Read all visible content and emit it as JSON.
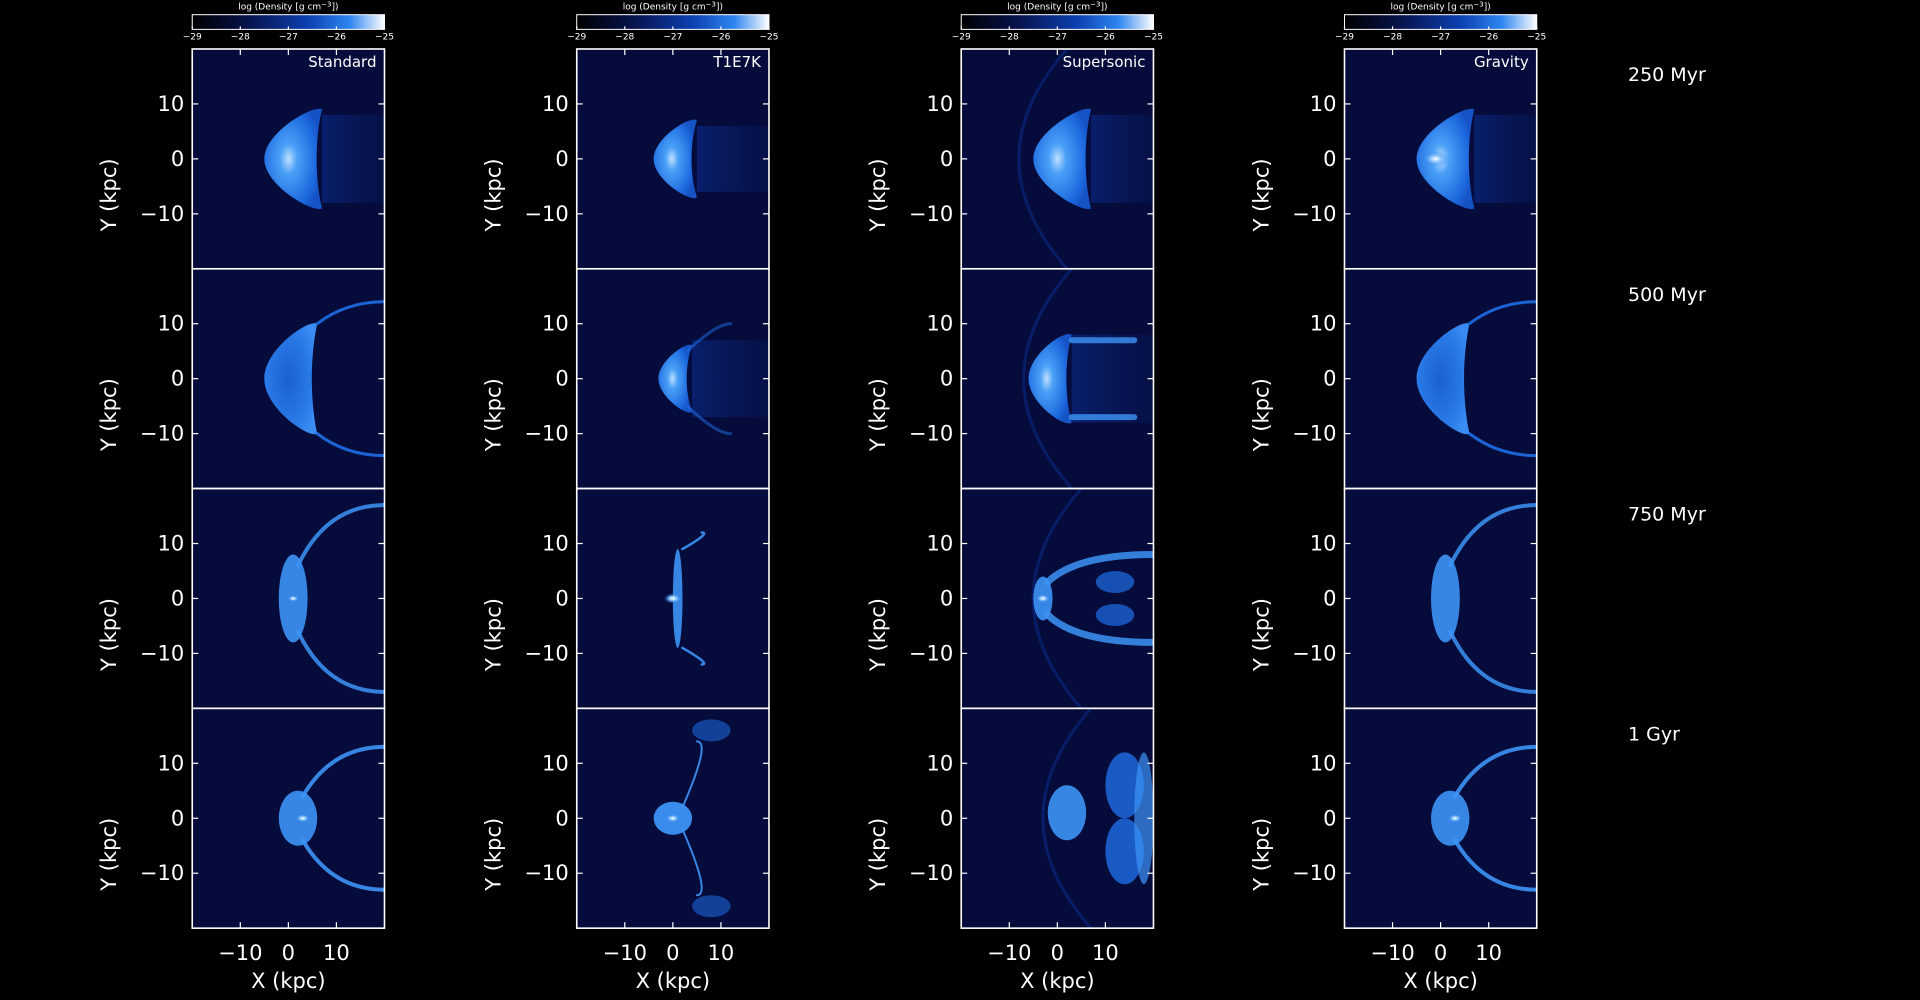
{
  "colorbar": {
    "label": "log (Density [g cm",
    "label_exp": "−3",
    "label_tail": "])",
    "ticks": [
      "−29",
      "−28",
      "−27",
      "−26",
      "−25"
    ],
    "range": [
      -29,
      -25
    ],
    "colors": [
      "#000000",
      "#08144f",
      "#0b3fb0",
      "#2f86f0",
      "#ffffff"
    ]
  },
  "times": [
    "250 Myr",
    "500 Myr",
    "750 Myr",
    "1 Gyr"
  ],
  "chart_data": {
    "type": "heatmap",
    "columns": [
      "Standard",
      "T1E7K",
      "Supersonic",
      "Gravity"
    ],
    "rows": [
      "250 Myr",
      "500 Myr",
      "750 Myr",
      "1 Gyr"
    ],
    "xlabel": "X (kpc)",
    "ylabel": "Y (kpc)",
    "xlim": [
      -20,
      20
    ],
    "ylim": [
      -20,
      20
    ],
    "xticks": [
      -10,
      0,
      10
    ],
    "yticks": [
      -10,
      0,
      10
    ],
    "xtick_labels": [
      "−10",
      "0",
      "10"
    ],
    "ytick_labels": [
      "−10",
      "0",
      "10"
    ],
    "value_scale": "log density [g cm^-3]",
    "value_range": [
      -29,
      -25
    ]
  },
  "colors": {
    "background": "#000000",
    "panel_bg": "#050c3c",
    "ambient": "#071656",
    "mid_blue": "#1f6ee6",
    "bright_blue": "#3d94f6",
    "core_white": "#eaf4ff"
  }
}
